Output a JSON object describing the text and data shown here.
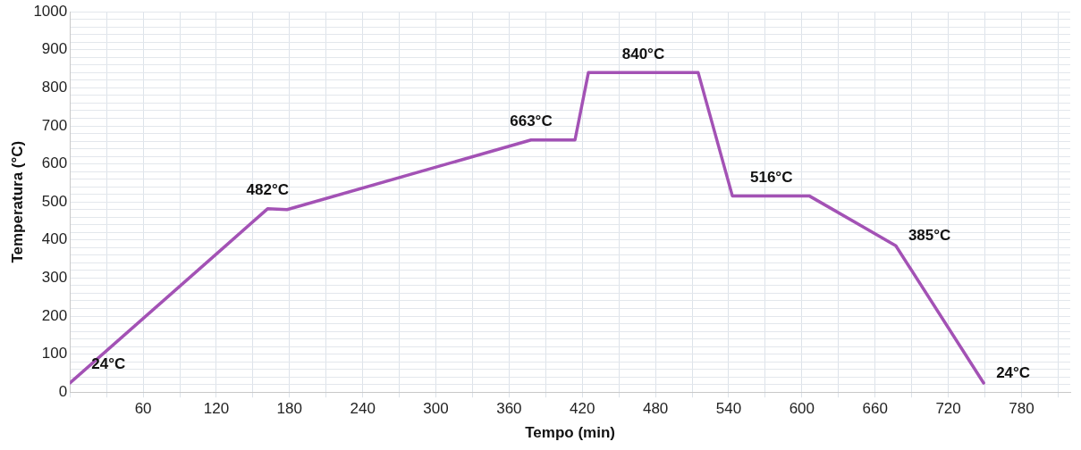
{
  "chart_data": {
    "type": "line",
    "xlabel": "Tempo (min)",
    "ylabel": "Temperatura (°C)",
    "x": [
      0,
      162,
      178,
      378,
      414,
      425,
      515,
      543,
      606,
      677,
      749
    ],
    "series": [
      {
        "color": "#a352b5",
        "values": [
          24,
          482,
          480,
          663,
          663,
          840,
          840,
          516,
          516,
          385,
          24
        ]
      }
    ],
    "xlim": [
      0,
      820
    ],
    "xticks": [
      {
        "value": 0,
        "label": null
      },
      {
        "value": 30,
        "label": null
      },
      60,
      {
        "value": 90,
        "label": null
      },
      120,
      {
        "value": 150,
        "label": null
      },
      180,
      {
        "value": 210,
        "label": null
      },
      240,
      {
        "value": 270,
        "label": null
      },
      300,
      {
        "value": 330,
        "label": null
      },
      360,
      {
        "value": 390,
        "label": null
      },
      420,
      {
        "value": 450,
        "label": null
      },
      480,
      {
        "value": 510,
        "label": null
      },
      540,
      {
        "value": 570,
        "label": null
      },
      600,
      {
        "value": 630,
        "label": null
      },
      660,
      {
        "value": 690,
        "label": null
      },
      720,
      {
        "value": 750,
        "label": null
      },
      780,
      {
        "value": 810,
        "label": null
      }
    ],
    "ylim": [
      0,
      1000
    ],
    "yticks": [
      0,
      {
        "value": 20,
        "label": null
      },
      {
        "value": 40,
        "label": null
      },
      {
        "value": 60,
        "label": null
      },
      {
        "value": 80,
        "label": null
      },
      100,
      {
        "value": 120,
        "label": null
      },
      {
        "value": 140,
        "label": null
      },
      {
        "value": 160,
        "label": null
      },
      {
        "value": 180,
        "label": null
      },
      200,
      {
        "value": 220,
        "label": null
      },
      {
        "value": 240,
        "label": null
      },
      {
        "value": 260,
        "label": null
      },
      {
        "value": 280,
        "label": null
      },
      300,
      {
        "value": 320,
        "label": null
      },
      {
        "value": 340,
        "label": null
      },
      {
        "value": 360,
        "label": null
      },
      {
        "value": 380,
        "label": null
      },
      400,
      {
        "value": 420,
        "label": null
      },
      {
        "value": 440,
        "label": null
      },
      {
        "value": 460,
        "label": null
      },
      {
        "value": 480,
        "label": null
      },
      500,
      {
        "value": 520,
        "label": null
      },
      {
        "value": 540,
        "label": null
      },
      {
        "value": 560,
        "label": null
      },
      {
        "value": 580,
        "label": null
      },
      600,
      {
        "value": 620,
        "label": null
      },
      {
        "value": 640,
        "label": null
      },
      {
        "value": 660,
        "label": null
      },
      {
        "value": 680,
        "label": null
      },
      700,
      {
        "value": 720,
        "label": null
      },
      {
        "value": 740,
        "label": null
      },
      {
        "value": 760,
        "label": null
      },
      {
        "value": 780,
        "label": null
      },
      800,
      {
        "value": 820,
        "label": null
      },
      {
        "value": 840,
        "label": null
      },
      {
        "value": 860,
        "label": null
      },
      {
        "value": 880,
        "label": null
      },
      900,
      {
        "value": 920,
        "label": null
      },
      {
        "value": 940,
        "label": null
      },
      {
        "value": 960,
        "label": null
      },
      {
        "value": 980,
        "label": null
      },
      1000
    ],
    "grid": true,
    "legend": false,
    "marker": "none",
    "line_style": "solid",
    "annotations": [
      {
        "text": "24°C",
        "x": 0,
        "y": 24
      },
      {
        "text": "482°C",
        "x": 162,
        "y": 482
      },
      {
        "text": "663°C",
        "x": 378,
        "y": 663
      },
      {
        "text": "840°C",
        "x": 470,
        "y": 840
      },
      {
        "text": "516°C",
        "x": 575,
        "y": 516
      },
      {
        "text": "385°C",
        "x": 677,
        "y": 385
      },
      {
        "text": "24°C",
        "x": 749,
        "y": 24
      }
    ]
  }
}
